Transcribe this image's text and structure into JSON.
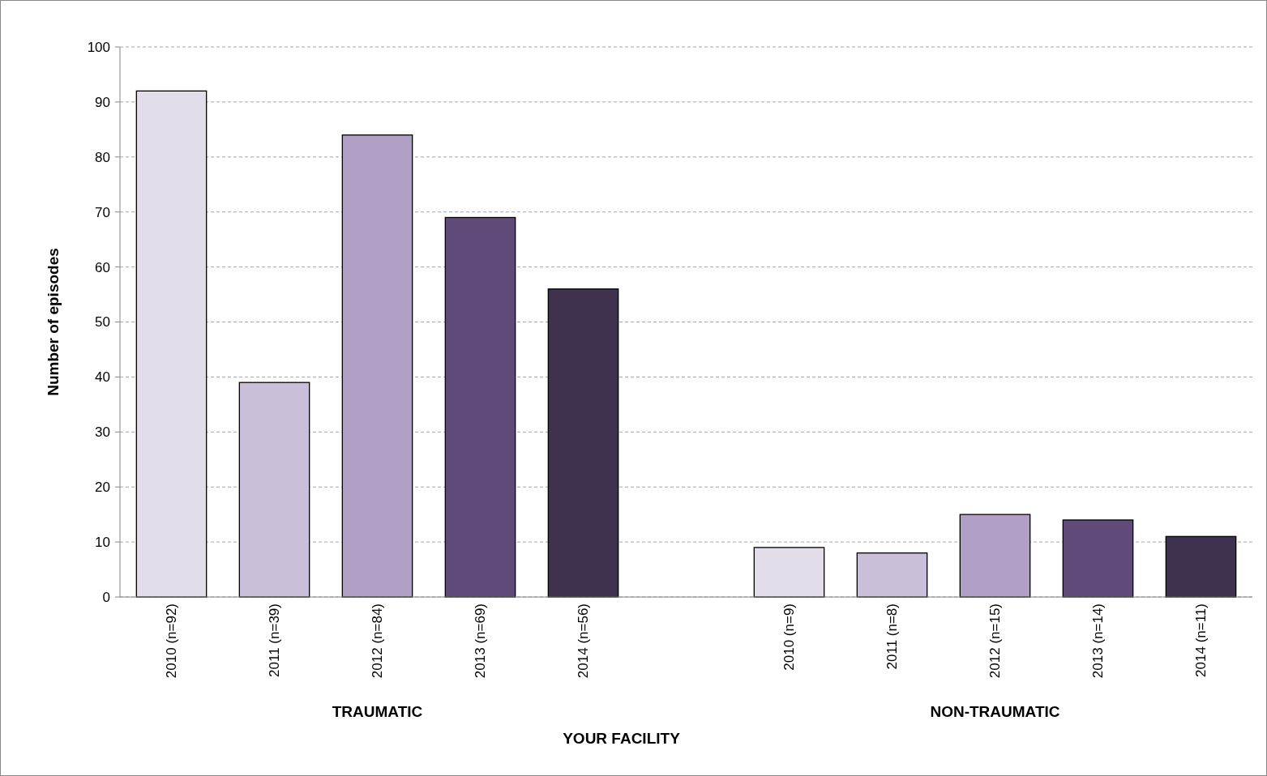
{
  "chart_data": {
    "type": "bar",
    "xlabel": "YOUR FACILITY",
    "ylabel": "Number of episodes",
    "categories": [
      "2010 (n=92)",
      "2011 (n=39)",
      "2012 (n=84)",
      "2013 (n=69)",
      "2014 (n=56)",
      null,
      "2010 (n=9)",
      "2011 (n=8)",
      "2012 (n=15)",
      "2013 (n=14)",
      "2014 (n=11)"
    ],
    "values": [
      92,
      39,
      84,
      69,
      56,
      null,
      9,
      8,
      15,
      14,
      11
    ],
    "colors": [
      "#e3dde9",
      "#c9bfd9",
      "#b1a0c6",
      "#5f4a7a",
      "#3f3150",
      null,
      "#e3dde9",
      "#c9bfd9",
      "#b1a0c6",
      "#5f4a7a",
      "#3f3150"
    ],
    "ylim": [
      0,
      100
    ],
    "yticks": [
      0,
      10,
      20,
      30,
      40,
      50,
      60,
      70,
      80,
      90,
      100
    ],
    "grid": "y",
    "annotations": [
      "TRAUMATIC",
      "NON-TRAUMATIC"
    ]
  }
}
